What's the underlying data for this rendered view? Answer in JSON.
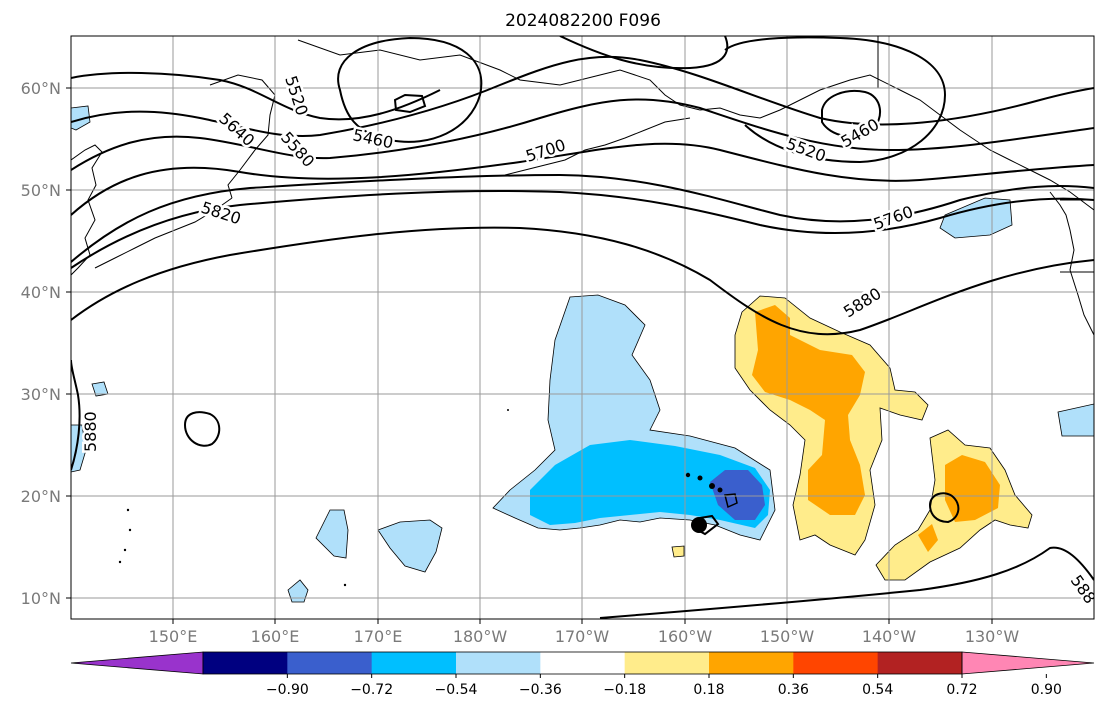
{
  "title": "2024082200 F096",
  "map": {
    "lat_labels": [
      "60°N",
      "50°N",
      "40°N",
      "30°N",
      "20°N",
      "10°N"
    ],
    "lon_labels": [
      "150°E",
      "160°E",
      "170°E",
      "180°W",
      "170°W",
      "160°W",
      "150°W",
      "140°W",
      "130°W"
    ],
    "lon_range": [
      140,
      240
    ],
    "lat_range": [
      8,
      65
    ],
    "contour_labels": [
      "5640",
      "5520",
      "5580",
      "5460",
      "5700",
      "5520",
      "5460",
      "5820",
      "5760",
      "5880",
      "5880",
      "588"
    ]
  },
  "colorbar": {
    "colors": [
      "#9933cc",
      "#000080",
      "#3a5fcd",
      "#00bfff",
      "#b0e0fa",
      "#ffffff",
      "#ffec8b",
      "#ffa500",
      "#ff4500",
      "#b22222",
      "#ff86b4"
    ],
    "tick_labels": [
      "−0.90",
      "−0.72",
      "−0.54",
      "−0.36",
      "−0.18",
      "0.18",
      "0.36",
      "0.54",
      "0.72",
      "0.90"
    ]
  }
}
